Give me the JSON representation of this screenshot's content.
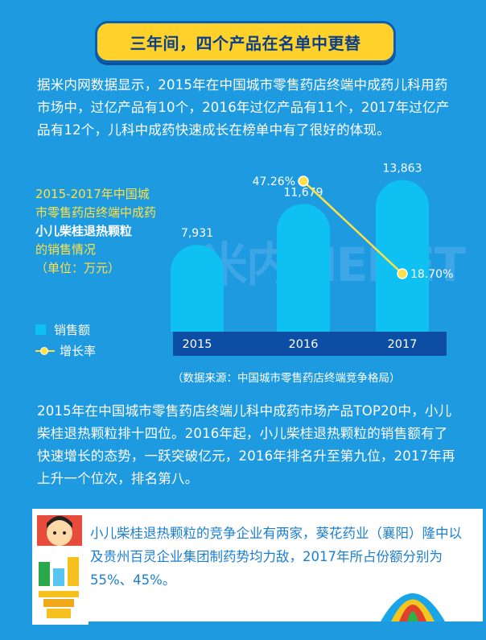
{
  "title": "三年间，四个产品在名单中更替",
  "intro_text": "据米内网数据显示，2015年在中国城市零售药店终端中成药儿科用药市场中，过亿产品有10个，2016年过亿产品有11个，2017年过亿产品有12个，儿科中成药快速成长在榜单中有了很好的体现。",
  "chart_desc": {
    "line1": "2015-2017年中国城市零售药店终端中成药",
    "product": "小儿柴桂退热颗粒",
    "line3": "的销售情况",
    "unit": "（单位：万元）"
  },
  "legend": {
    "sales": "销售额",
    "growth": "增长率"
  },
  "watermark": "米内MENET",
  "source": "（数据来源：中国城市零售药店终端竞争格局）",
  "body_text": "2015年在中国城市零售药店终端儿科中成药市场产品TOP20中，小儿柴桂退热颗粒排十四位。2016年起，小儿柴桂退热颗粒的销售额有了快速增长的态势，一跃突破亿元，2016年排名升至第九位，2017年再上升一个位次，排名第八。",
  "box_text": "小儿柴桂退热颗粒的竞争企业有两家，葵花药业（襄阳）隆中以及贵州百灵企业集团制药势均力敌，2017年所占份额分别为55%、45%。",
  "colors": {
    "background": "#1e9ae0",
    "bar": "#0ec1f2",
    "bar_base": "#0b4ea3",
    "line": "#ffe145",
    "title_bg": "#ffd22b"
  },
  "chart_data": {
    "type": "bar",
    "categories": [
      "2015",
      "2016",
      "2017"
    ],
    "series": [
      {
        "name": "销售额",
        "values": [
          7931,
          11679,
          13863
        ],
        "labels": [
          "7,931",
          "11,679",
          "13,863"
        ]
      },
      {
        "name": "增长率",
        "type": "line",
        "x": [
          "2016",
          "2017"
        ],
        "values": [
          47.26,
          18.7
        ],
        "labels": [
          "47.26%",
          "18.70%"
        ]
      }
    ],
    "title": "",
    "xlabel": "",
    "ylabel": "",
    "legend": "left"
  }
}
